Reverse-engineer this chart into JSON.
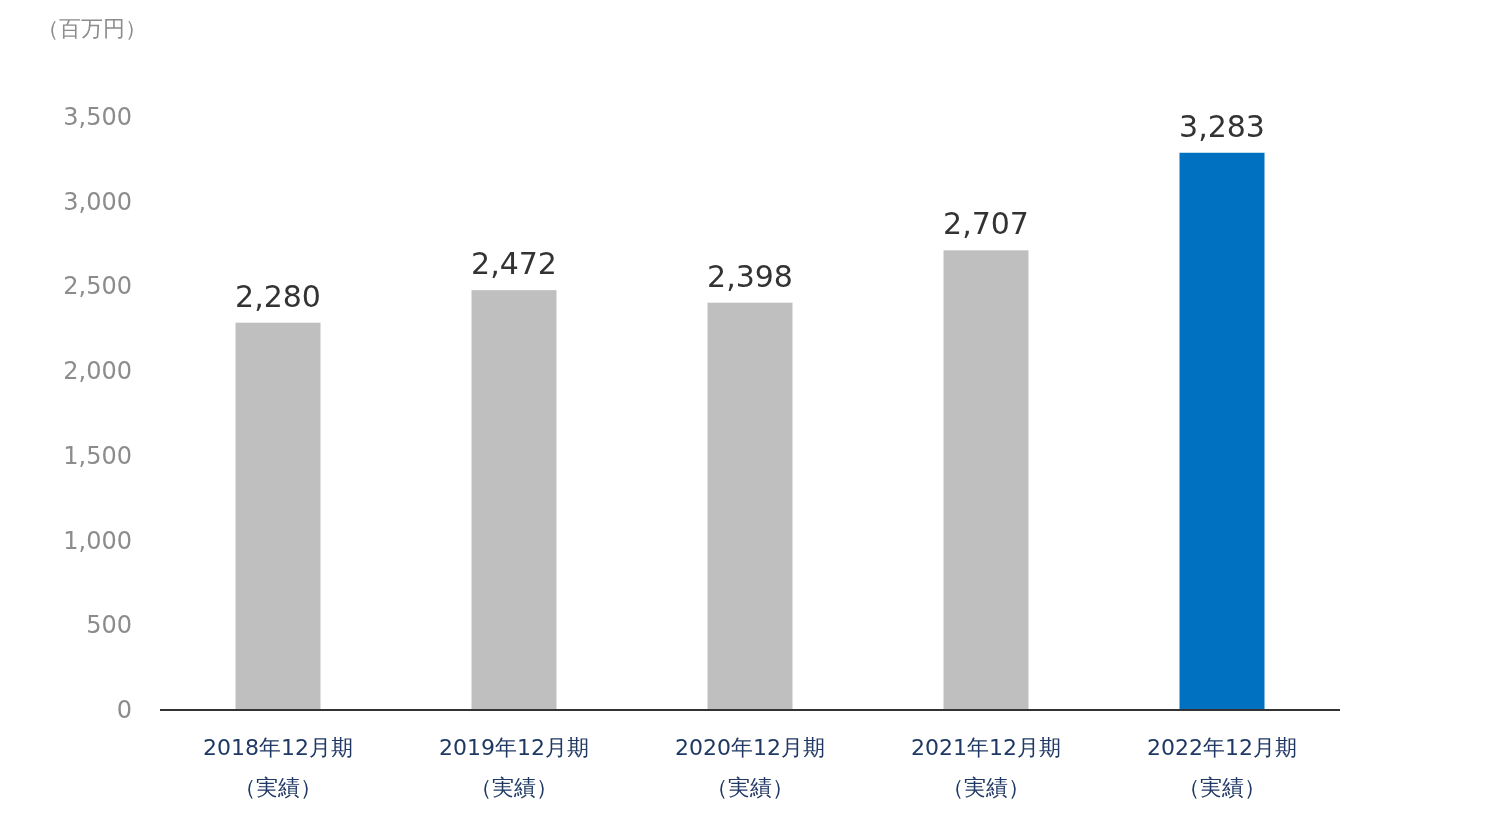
{
  "chart_data": {
    "type": "bar",
    "ylabel": "（百万円）",
    "categories": [
      "2018年12月期（実績）",
      "2019年12月期（実績）",
      "2020年12月期（実績）",
      "2021年12月期（実績）",
      "2022年12月期（実績）"
    ],
    "values": [
      2280,
      2472,
      2398,
      2707,
      3283
    ],
    "value_labels": [
      "2,280",
      "2,472",
      "2,398",
      "2,707",
      "3,283"
    ],
    "colors": [
      "#bfbfbf",
      "#bfbfbf",
      "#bfbfbf",
      "#bfbfbf",
      "#0070c0"
    ],
    "ylim": [
      0,
      3500
    ],
    "yticks": [
      0,
      500,
      {
        "value": 1000,
        "label": "1,000"
      },
      {
        "value": 1500,
        "label": "1,500"
      },
      {
        "value": 2000,
        "label": "2,000"
      },
      {
        "value": 2500,
        "label": "2,500"
      },
      {
        "value": 3000,
        "label": "3,000"
      },
      {
        "value": 3500,
        "label": "3,500"
      }
    ]
  }
}
